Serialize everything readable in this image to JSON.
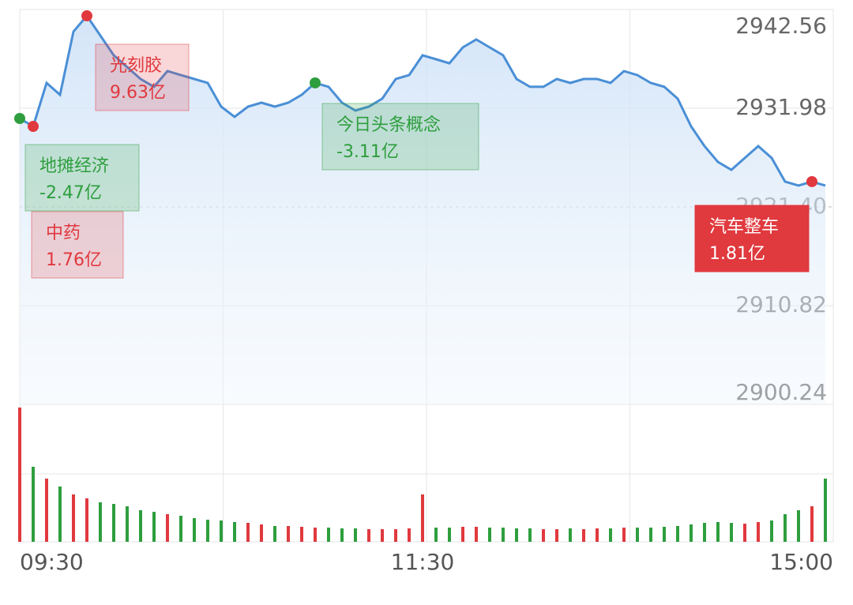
{
  "chart_data": {
    "type": "line",
    "categories": [
      "09:30",
      null,
      null,
      null,
      null,
      null,
      null,
      null,
      null,
      null,
      null,
      null,
      null,
      null,
      null,
      null,
      null,
      null,
      null,
      null,
      null,
      null,
      null,
      null,
      null,
      null,
      null,
      null,
      null,
      null,
      "11:30",
      null,
      null,
      null,
      null,
      null,
      null,
      null,
      null,
      null,
      null,
      null,
      null,
      null,
      null,
      null,
      null,
      null,
      null,
      null,
      null,
      null,
      null,
      null,
      null,
      null,
      null,
      null,
      null,
      null,
      "15:00"
    ],
    "series": [
      {
        "color": "#4a8fd6",
        "values": [
          2930.88,
          2930.03,
          2934.69,
          2933.42,
          2940.19,
          2941.88,
          2939.77,
          2937.65,
          2936.38,
          2935.11,
          2934.27,
          2935.96,
          2935.53,
          2935.11,
          2934.69,
          2932.15,
          2931.05,
          2932.15,
          2932.57,
          2932.15,
          2932.57,
          2933.42,
          2934.69,
          2934.27,
          2932.57,
          2931.73,
          2932.15,
          2933.0,
          2935.11,
          2935.53,
          2937.65,
          2937.23,
          2936.8,
          2938.5,
          2939.34,
          2938.5,
          2937.65,
          2935.11,
          2934.27,
          2934.27,
          2935.11,
          2934.69,
          2935.11,
          2935.11,
          2934.69,
          2935.96,
          2935.53,
          2934.69,
          2934.27,
          2933.0,
          2930.03,
          2927.92,
          2926.22,
          2925.38,
          2926.65,
          2927.92,
          2926.65,
          2924.11,
          2923.69,
          2924.11,
          2923.69
        ]
      }
    ],
    "volume": {
      "values": [
        170,
        95,
        80,
        70,
        60,
        55,
        50,
        48,
        45,
        40,
        38,
        35,
        33,
        30,
        28,
        27,
        25,
        24,
        22,
        20,
        20,
        19,
        18,
        18,
        17,
        17,
        16,
        16,
        16,
        17,
        60,
        18,
        18,
        19,
        19,
        18,
        18,
        17,
        17,
        16,
        16,
        17,
        16,
        17,
        17,
        18,
        18,
        18,
        19,
        20,
        22,
        24,
        25,
        24,
        23,
        25,
        27,
        35,
        40,
        45,
        80
      ],
      "up_color": "#e0393e",
      "down_color": "#2e9e3e"
    },
    "ylim": [
      2900.24,
      2942.56
    ],
    "yticks": [
      2900.24,
      2910.82,
      {
        "value": 2921.4,
        "label": "2921.40"
      },
      2931.98,
      2942.56
    ],
    "annotations": [
      {
        "label": "光刻胶",
        "amount": "9.63亿",
        "index": 5,
        "color": "#e0393e"
      },
      {
        "label": "地摊经济",
        "amount": "-2.47亿",
        "index": 0,
        "color": "#2e9e3e"
      },
      {
        "label": "中药",
        "amount": "1.76亿",
        "index": 1,
        "color": "#e0393e"
      },
      {
        "label": "今日头条概念",
        "amount": "-3.11亿",
        "index": 22,
        "color": "#2e9e3e"
      },
      {
        "label": "汽车整车",
        "amount": "1.81亿",
        "index": 59,
        "color": "#e0393e"
      }
    ]
  }
}
